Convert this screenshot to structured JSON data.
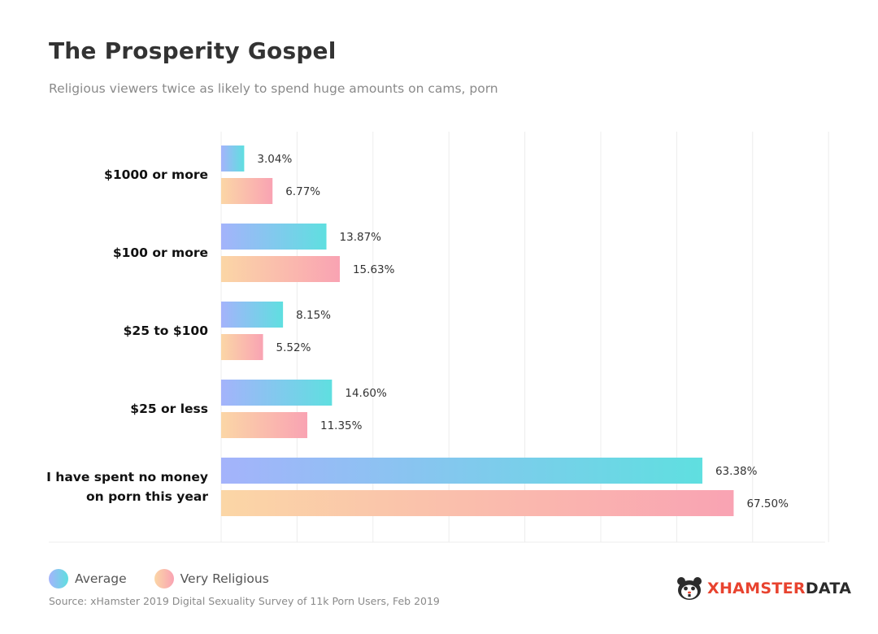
{
  "header": {
    "title": "The Prosperity Gospel",
    "subtitle": "Religious viewers twice as likely to spend huge amounts on cams, porn"
  },
  "chart_data": {
    "type": "bar",
    "orientation": "horizontal",
    "categories": [
      [
        "$1000 or more"
      ],
      [
        "$100 or more"
      ],
      [
        "$25 to $100"
      ],
      [
        "$25 or less"
      ],
      [
        "I have spent no money",
        "on porn this year"
      ]
    ],
    "series": [
      {
        "name": "Average",
        "values": [
          3.04,
          13.87,
          8.15,
          14.6,
          63.38
        ],
        "labels": [
          "3.04%",
          "13.87%",
          "8.15%",
          "14.60%",
          "63.38%"
        ],
        "gradient": [
          "#a4b3fb",
          "#5fdfe0"
        ]
      },
      {
        "name": "Very Religious",
        "values": [
          6.77,
          15.63,
          5.52,
          11.35,
          67.5
        ],
        "labels": [
          "6.77%",
          "15.63%",
          "5.52%",
          "11.35%",
          "67.50%"
        ],
        "gradient": [
          "#fbd6a6",
          "#f9a3b3"
        ]
      }
    ],
    "xlim": [
      0,
      80
    ],
    "grid": true,
    "legend": "bottom-left"
  },
  "legend": {
    "items": [
      {
        "label": "Average",
        "colors": [
          "#a4b3fb",
          "#5fdfe0"
        ]
      },
      {
        "label": "Very Religious",
        "colors": [
          "#fbd6a6",
          "#f9a3b3"
        ]
      }
    ]
  },
  "footer": {
    "source": "Source: xHamster 2019 Digital Sexuality Survey of 11k Porn Users, Feb 2019",
    "brand_x": "XHAMSTER",
    "brand_rest": "DATA",
    "logo_icon": "hamster-face-icon"
  }
}
